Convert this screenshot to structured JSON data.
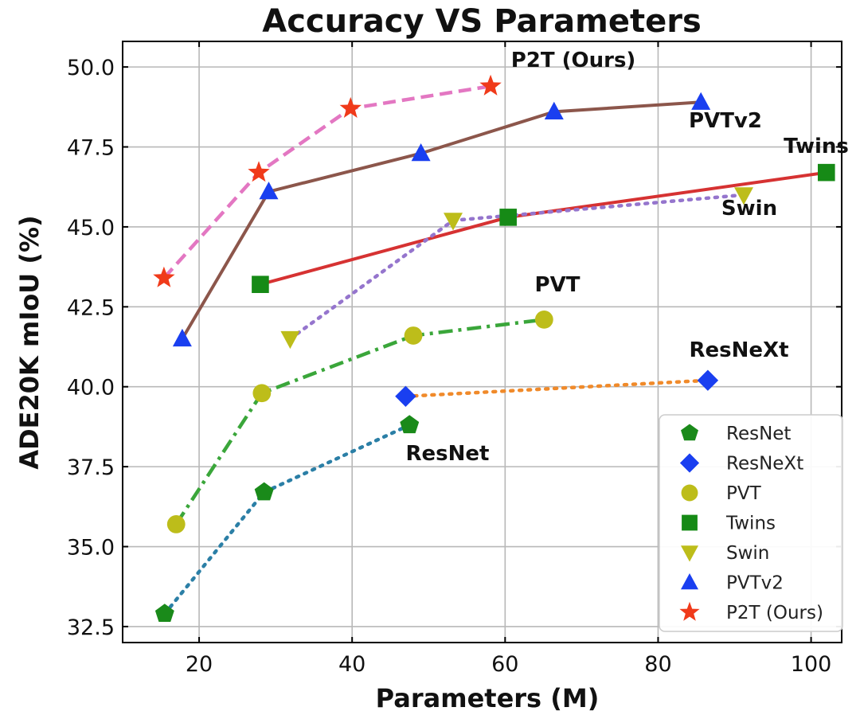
{
  "chart_data": {
    "type": "line",
    "title": "Accuracy VS Parameters",
    "xlabel": "Parameters (M)",
    "ylabel": "ADE20K mIoU (%)",
    "xlim": [
      10,
      104
    ],
    "ylim": [
      32,
      50.8
    ],
    "xticks": [
      20,
      40,
      60,
      80,
      100
    ],
    "xtick_labels": [
      "20",
      "40",
      "60",
      "80",
      "100"
    ],
    "yticks": [
      32.5,
      35.0,
      37.5,
      40.0,
      42.5,
      45.0,
      47.5,
      50.0
    ],
    "ytick_labels": [
      "32.5",
      "35.0",
      "37.5",
      "40.0",
      "42.5",
      "45.0",
      "47.5",
      "50.0"
    ],
    "grid": true,
    "legend_position": "lower-right",
    "series": [
      {
        "name": "ResNet",
        "marker": "pentagon",
        "marker_color": "#1a8a1a",
        "line_color": "#2b7fa6",
        "line_style": "dotted",
        "x": [
          15.5,
          28.5,
          47.5
        ],
        "y": [
          32.9,
          36.7,
          38.8
        ],
        "annotation": "ResNet"
      },
      {
        "name": "ResNeXt",
        "marker": "diamond",
        "marker_color": "#1a3ff0",
        "line_color": "#f08a2a",
        "line_style": "dotted",
        "x": [
          47.0,
          86.5
        ],
        "y": [
          39.7,
          40.2
        ],
        "annotation": "ResNeXt"
      },
      {
        "name": "PVT",
        "marker": "circle",
        "marker_color": "#bdbd1a",
        "line_color": "#3aa63a",
        "line_style": "dashdot",
        "x": [
          17.0,
          28.2,
          48.0,
          65.1
        ],
        "y": [
          35.7,
          39.8,
          41.6,
          42.1
        ],
        "annotation": "PVT"
      },
      {
        "name": "Twins",
        "marker": "square",
        "marker_color": "#168a16",
        "line_color": "#d63232",
        "line_style": "solid",
        "x": [
          28.0,
          60.4,
          102.0
        ],
        "y": [
          43.2,
          45.3,
          46.7
        ],
        "annotation": "Twins"
      },
      {
        "name": "Swin",
        "marker": "triangle-down",
        "marker_color": "#bdbd1a",
        "line_color": "#9575cd",
        "line_style": "dotted",
        "x": [
          31.9,
          53.2,
          91.2
        ],
        "y": [
          41.5,
          45.2,
          46.0
        ],
        "annotation": "Swin"
      },
      {
        "name": "PVTv2",
        "marker": "triangle-up",
        "marker_color": "#1a3ff0",
        "line_color": "#8c564b",
        "line_style": "solid",
        "x": [
          17.8,
          29.1,
          49.0,
          66.4,
          85.6
        ],
        "y": [
          41.5,
          46.1,
          47.3,
          48.6,
          48.9
        ],
        "annotation": "PVTv2"
      },
      {
        "name": "P2T (Ours)",
        "marker": "star",
        "marker_color": "#f03a1a",
        "line_color": "#e377c2",
        "line_style": "dashed",
        "x": [
          15.4,
          27.8,
          39.8,
          58.1
        ],
        "y": [
          43.4,
          46.7,
          48.7,
          49.4
        ],
        "annotation": "P2T (Ours)"
      }
    ]
  }
}
